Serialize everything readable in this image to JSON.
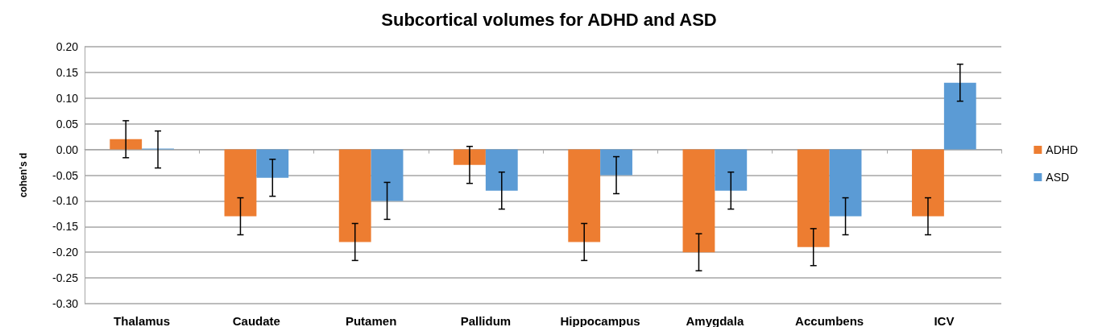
{
  "chart_data": {
    "type": "bar",
    "title": "Subcortical volumes for ADHD and ASD",
    "ylabel": "cohen's d",
    "categories": [
      "Thalamus",
      "Caudate",
      "Putamen",
      "Pallidum",
      "Hippocampus",
      "Amygdala",
      "Accumbens",
      "ICV"
    ],
    "series": [
      {
        "name": "ADHD",
        "color": "#ed7d31",
        "values": [
          0.02,
          -0.13,
          -0.18,
          -0.03,
          -0.18,
          -0.2,
          -0.19,
          -0.13
        ],
        "errors": [
          0.036,
          0.036,
          0.036,
          0.036,
          0.036,
          0.036,
          0.036,
          0.036
        ]
      },
      {
        "name": "ASD",
        "color": "#5b9bd5",
        "values": [
          0,
          -0.055,
          -0.1,
          -0.08,
          -0.05,
          -0.08,
          -0.13,
          0.13
        ],
        "errors": [
          0.036,
          0.036,
          0.036,
          0.036,
          0.036,
          0.036,
          0.036,
          0.036
        ]
      }
    ],
    "ylim": [
      -0.3,
      0.2
    ],
    "yticks": [
      {
        "value": -0.3,
        "label": "-0.30"
      },
      {
        "value": -0.25,
        "label": "-0.25"
      },
      {
        "value": -0.2,
        "label": "-0.20"
      },
      {
        "value": -0.15,
        "label": "-0.15"
      },
      {
        "value": -0.1,
        "label": "-0.10"
      },
      {
        "value": -0.05,
        "label": "-0.05"
      },
      {
        "value": 0,
        "label": "0.00"
      },
      {
        "value": 0.05,
        "label": "0.05"
      },
      {
        "value": 0.1,
        "label": "0.10"
      },
      {
        "value": 0.15,
        "label": "0.15"
      },
      {
        "value": 0.2,
        "label": "0.20"
      }
    ],
    "grid": "y",
    "legend": "right"
  }
}
